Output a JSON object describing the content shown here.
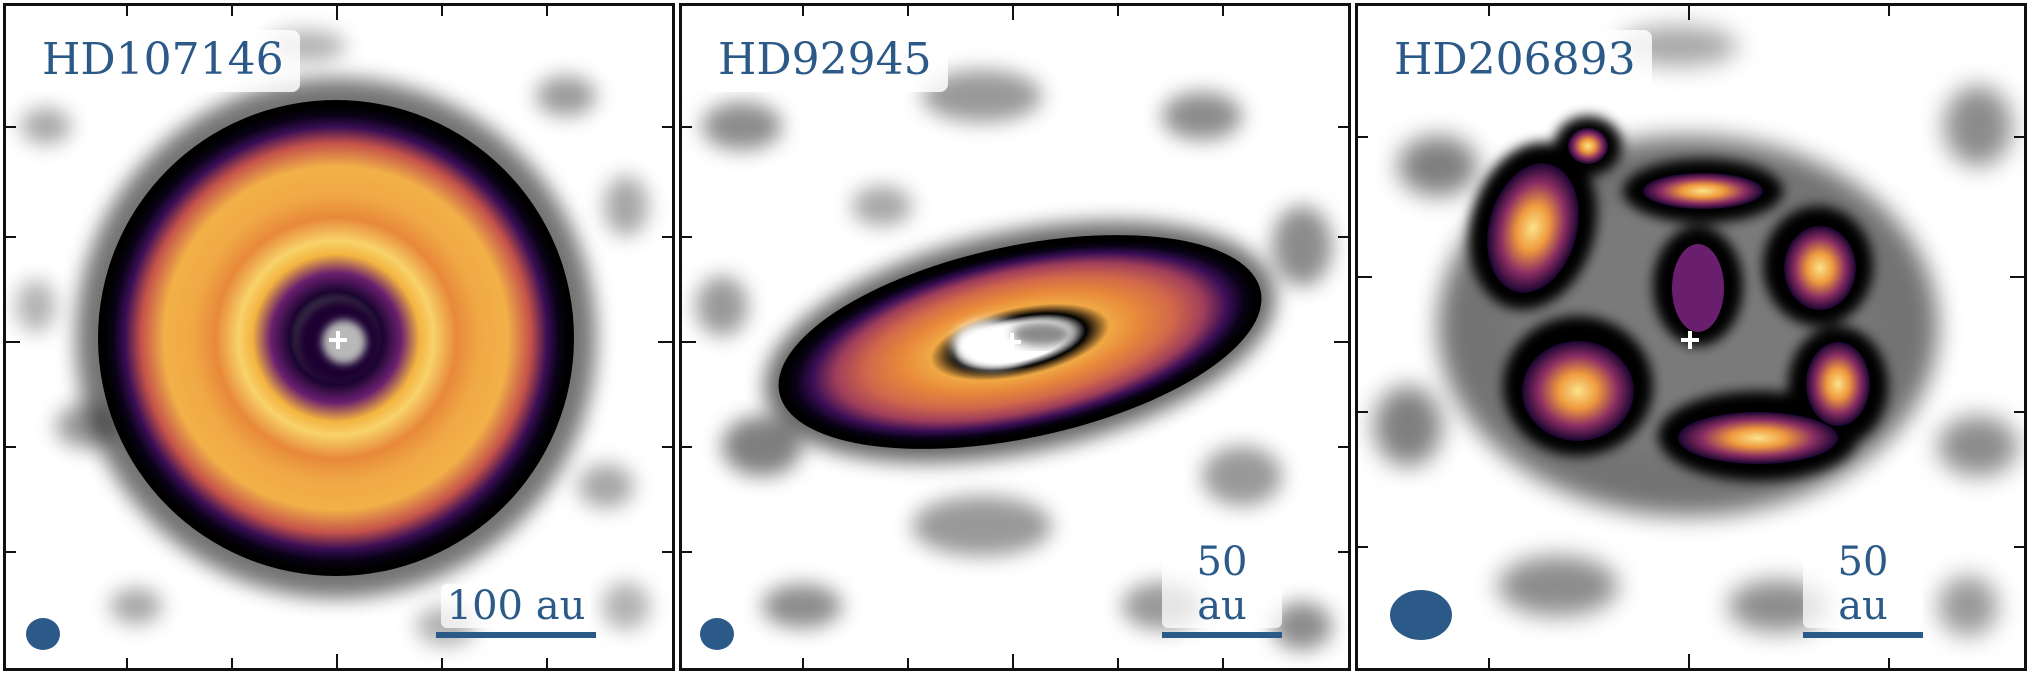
{
  "panels": [
    {
      "name": "HD107146",
      "scale_label": "100 au"
    },
    {
      "name": "HD92945",
      "scale_label": "50 au"
    },
    {
      "name": "HD206893",
      "scale_label": "50 au"
    }
  ],
  "colors": {
    "label_text": "#2c5a88",
    "scale_bar": "#2c5a88",
    "beam": "#2c5a88",
    "frame": "#111111",
    "star_marker": "#ffffff"
  }
}
